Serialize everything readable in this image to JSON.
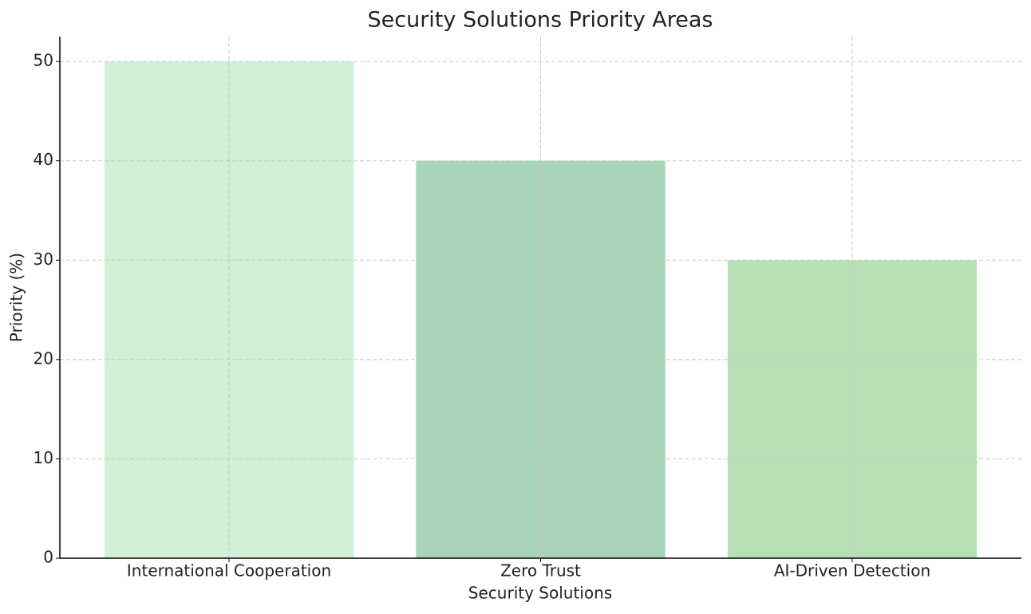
{
  "chart_data": {
    "type": "bar",
    "title": "Security Solutions Priority Areas",
    "x_label": "Security Solutions",
    "y_label": "Priority (%)",
    "categories": [
      "International Cooperation",
      "Zero Trust",
      "AI-Driven Detection"
    ],
    "values": [
      50,
      40,
      30
    ],
    "colors": [
      "#d1f0d6",
      "#a8d4b9",
      "#b8e0b7"
    ],
    "ylim": [
      0,
      52.5
    ],
    "yticks": [
      0,
      10,
      20,
      30,
      40,
      50
    ],
    "grid": true
  }
}
